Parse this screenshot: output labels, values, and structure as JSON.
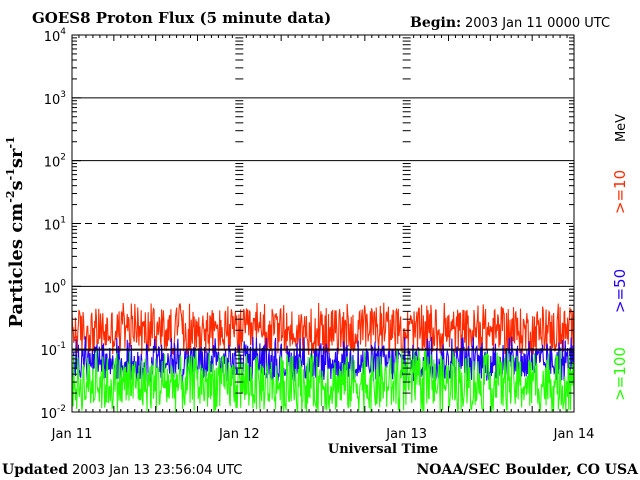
{
  "header": {
    "title": "GOES8 Proton Flux (5 minute data)",
    "begin_label": "Begin:",
    "begin_value": "2003 Jan 11 0000 UTC"
  },
  "footer": {
    "updated_label": "Updated",
    "updated_value": "2003 Jan 13 23:56:04 UTC",
    "credit": "NOAA/SEC Boulder, CO USA"
  },
  "legend": {
    "unit": "MeV",
    "items": [
      {
        "label": ">=10",
        "color": "#ff2a00"
      },
      {
        "label": ">=50",
        "color": "#2200ff"
      },
      {
        "label": ">=100",
        "color": "#22ff00"
      }
    ]
  },
  "chart_data": {
    "type": "line",
    "title": "GOES8 Proton Flux (5 minute data)",
    "xlabel": "Universal Time",
    "ylabel_parts": [
      "Particles cm",
      "-2",
      "s",
      "-1",
      "sr",
      "-1"
    ],
    "y_scale": "log",
    "ylim": [
      0.01,
      10000
    ],
    "y_ticks": [
      {
        "value": 0.01,
        "base": "10",
        "exp": "-2"
      },
      {
        "value": 0.1,
        "base": "10",
        "exp": "-1"
      },
      {
        "value": 1,
        "base": "10",
        "exp": "0"
      },
      {
        "value": 10,
        "base": "10",
        "exp": "1"
      },
      {
        "value": 100,
        "base": "10",
        "exp": "2"
      },
      {
        "value": 1000,
        "base": "10",
        "exp": "3"
      },
      {
        "value": 10000,
        "base": "10",
        "exp": "4"
      }
    ],
    "x_ticks": [
      "Jan 11",
      "Jan 12",
      "Jan 13",
      "Jan 14"
    ],
    "xlim": [
      "2003-01-11 00:00",
      "2003-01-14 00:00"
    ],
    "grid_solid_y": [
      1000,
      100,
      1,
      0.1
    ],
    "grid_dashed_y": [
      10
    ],
    "threshold_line": 0.1,
    "series": [
      {
        "name": ">=10 MeV",
        "color": "#ff2a00",
        "typical_range": [
          0.08,
          0.45
        ],
        "peak": 0.55
      },
      {
        "name": ">=50 MeV",
        "color": "#2200ff",
        "typical_range": [
          0.03,
          0.12
        ],
        "peak": 0.16
      },
      {
        "name": ">=100 MeV",
        "color": "#22ff00",
        "typical_range": [
          0.01,
          0.08
        ],
        "peak": 0.1
      }
    ]
  }
}
